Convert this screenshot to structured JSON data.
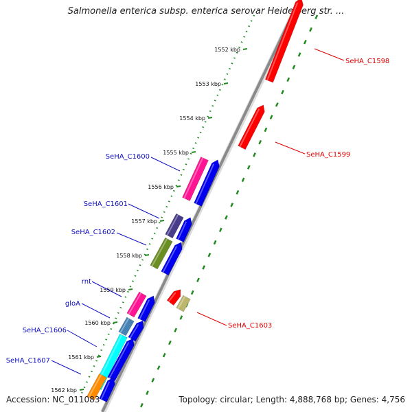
{
  "title": "Salmonella enterica subsp. enterica serovar Heidelberg str. ...",
  "footer": {
    "accession": "Accession: NC_011083",
    "summary": "Topology: circular; Length: 4,888,768 bp; Genes: 4,756"
  },
  "colors": {
    "backbone": "#8a8a8a",
    "dotted_track": "#1f8a1f",
    "forward_label": "#1010c0",
    "reverse_label": "#dd0000"
  },
  "ticks": [
    "1552 kbp",
    "1553 kbp",
    "1554 kbp",
    "1555 kbp",
    "1556 kbp",
    "1557 kbp",
    "1558 kbp",
    "1559 kbp",
    "1560 kbp",
    "1561 kbp",
    "1562 kbp"
  ],
  "genes": [
    {
      "label": "SeHA_C1598",
      "strand": "reverse",
      "label_color": "#dd0000",
      "arrow_color": "#ff0000"
    },
    {
      "label": "SeHA_C1599",
      "strand": "reverse",
      "label_color": "#dd0000",
      "arrow_color": "#ff0000"
    },
    {
      "label": "SeHA_C1600",
      "strand": "forward",
      "label_color": "#1010c0",
      "arrow_color": "#0000ee",
      "cog_color": "#ff1493"
    },
    {
      "label": "SeHA_C1601",
      "strand": "forward",
      "label_color": "#1010c0",
      "arrow_color": "#0000ee",
      "cog_color": "#483d8b"
    },
    {
      "label": "SeHA_C1602",
      "strand": "forward",
      "label_color": "#1010c0",
      "arrow_color": "#0000ee",
      "cog_color": "#6b8e23"
    },
    {
      "label": "rnt",
      "strand": "forward",
      "label_color": "#1010c0",
      "arrow_color": "#0000ee",
      "cog_color": "#ff1493"
    },
    {
      "label": "gloA",
      "strand": "forward",
      "label_color": "#1010c0",
      "arrow_color": "#0000ee",
      "cog_color": "#4682b4"
    },
    {
      "label": "SeHA_C1603",
      "strand": "reverse",
      "label_color": "#dd0000",
      "arrow_color": "#ff0000",
      "cog_color": "#bdb76b"
    },
    {
      "label": "SeHA_C1606",
      "strand": "forward",
      "label_color": "#1010c0",
      "arrow_color": "#0000ee",
      "cog_color": "#00ffff"
    },
    {
      "label": "SeHA_C1607",
      "strand": "forward",
      "label_color": "#1010c0",
      "arrow_color": "#0000ee",
      "cog_color": "#ff8c00"
    }
  ]
}
